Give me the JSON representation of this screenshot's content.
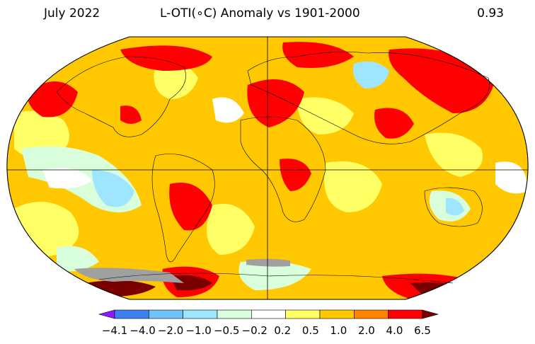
{
  "header": {
    "left": "July 2022",
    "center": "L-OTI(∘C) Anomaly vs 1901-2000",
    "right": "0.93"
  },
  "colors": {
    "no_data": "#a0a0a0",
    "bins": [
      "#8c1cff",
      "#3f80f0",
      "#6ec3fa",
      "#9ee6ff",
      "#d9fedc",
      "#ffffff",
      "#ffff66",
      "#ffc800",
      "#ff8200",
      "#ff0000",
      "#7a0000"
    ]
  },
  "colorbar": {
    "ticks": [
      "−4.1",
      "−4.0",
      "−2.0",
      "−1.0",
      "−0.5",
      "−0.2",
      "0.2",
      "0.5",
      "1.0",
      "2.0",
      "4.0",
      "6.5"
    ]
  }
}
